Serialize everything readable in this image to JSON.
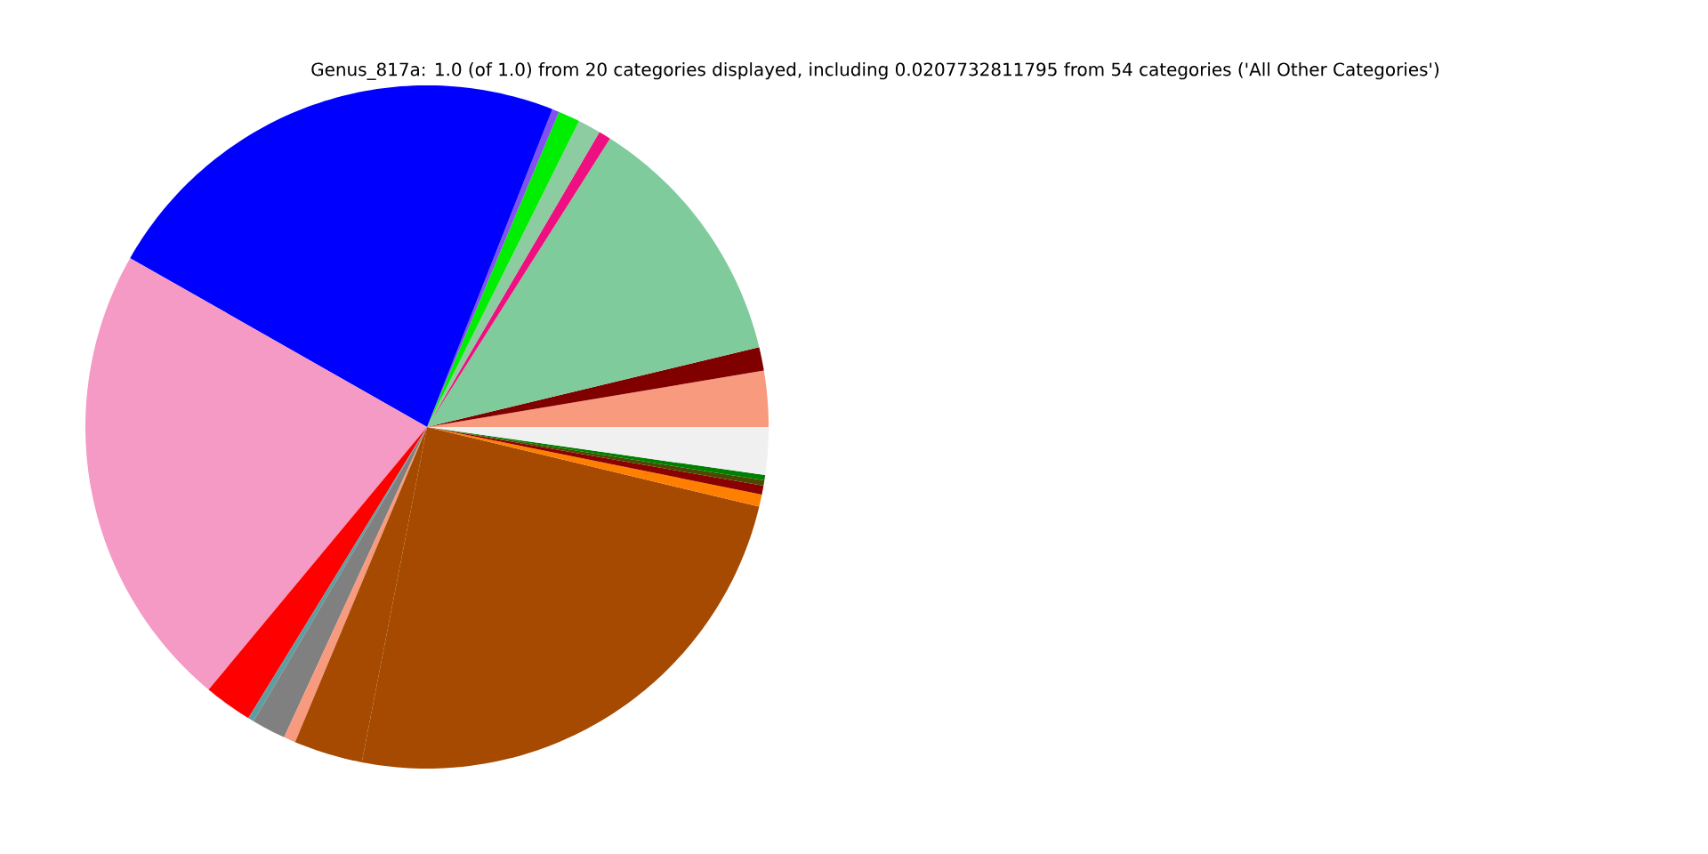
{
  "chart_data": {
    "type": "pie",
    "title": "Genus_817a: 1.0 (of 1.0) from 20 categories displayed, including 0.0207732811795 from 54 categories ('All Other Categories')",
    "categories": [
      null,
      null,
      null,
      null,
      null,
      null,
      null,
      null,
      null,
      null,
      null,
      null,
      null,
      null,
      null,
      null,
      null,
      null,
      null,
      null
    ],
    "values": [
      2.64,
      1.11,
      12.25,
      0.58,
      1.08,
      1.03,
      0.33,
      22.75,
      22.19,
      2.28,
      0.28,
      1.61,
      0.56,
      3.25,
      24.31,
      0.58,
      0.42,
      0.25,
      0.25,
      2.25
    ],
    "colors": [
      "#f89a7e",
      "#800000",
      "#80cb9c",
      "#ee1080",
      "#8ccca0",
      "#00ee00",
      "#8050f0",
      "#0000ff",
      "#f49ac4",
      "#ff0000",
      "#5f9ea0",
      "#808080",
      "#f89a7e",
      "#a54a00",
      "#a54a00",
      "#ff7f00",
      "#8b0000",
      "#4a4a00",
      "#008000",
      "#f0f0f0"
    ]
  }
}
